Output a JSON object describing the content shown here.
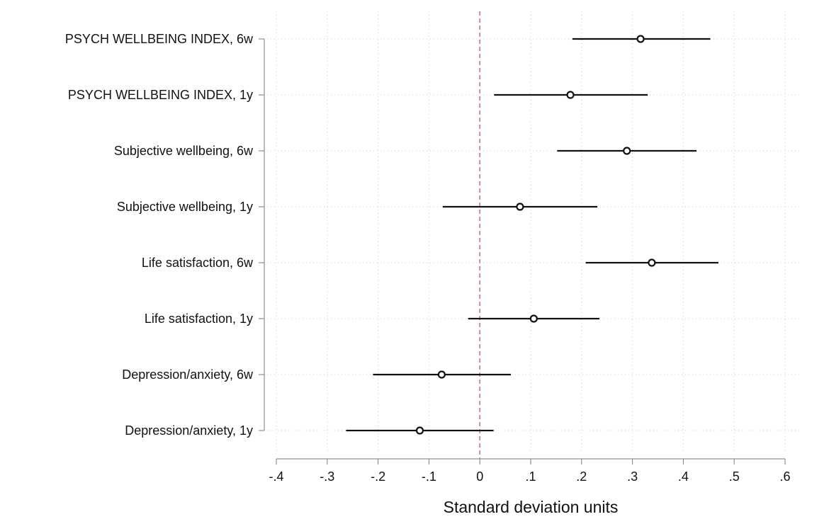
{
  "chart_data": {
    "type": "scatter",
    "subtype": "coefficient-plot-horizontal",
    "xlabel": "Standard deviation units",
    "xlim": [
      -0.4,
      0.6
    ],
    "x_ticks": [
      -0.4,
      -0.3,
      -0.2,
      -0.1,
      0,
      0.1,
      0.2,
      0.3,
      0.4,
      0.5,
      0.6
    ],
    "x_tick_labels": [
      "-.4",
      "-.3",
      "-.2",
      "-.1",
      "0",
      ".1",
      ".2",
      ".3",
      ".4",
      ".5",
      ".6"
    ],
    "grid": true,
    "reference_line": {
      "x": 0,
      "color": "#d9708f",
      "style": "dashed"
    },
    "colors": {
      "marker": "#111111",
      "ci": "#111111",
      "grid": "#c8c8c8",
      "axis": "#7a7a7a"
    },
    "categories": [
      "PSYCH WELLBEING INDEX, 6w",
      "PSYCH WELLBEING INDEX, 1y",
      "Subjective wellbeing, 6w",
      "Subjective wellbeing, 1y",
      "Life satisfaction, 6w",
      "Life satisfaction, 1y",
      "Depression/anxiety, 6w",
      "Depression/anxiety, 1y"
    ],
    "estimates": [
      0.316,
      0.178,
      0.289,
      0.079,
      0.338,
      0.106,
      -0.075,
      -0.118
    ],
    "ci_low": [
      0.182,
      0.028,
      0.152,
      -0.073,
      0.208,
      -0.023,
      -0.21,
      -0.263
    ],
    "ci_high": [
      0.453,
      0.33,
      0.426,
      0.231,
      0.469,
      0.235,
      0.061,
      0.027
    ]
  }
}
